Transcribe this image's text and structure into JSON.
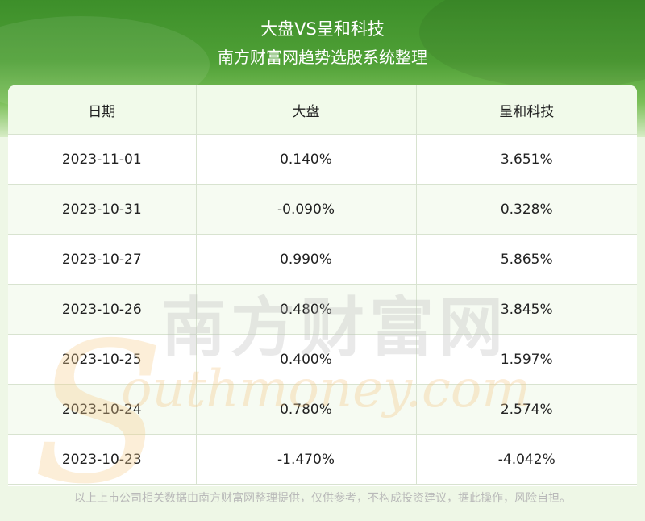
{
  "header": {
    "title": "大盘VS呈和科技",
    "subtitle": "南方财富网趋势选股系统整理"
  },
  "table": {
    "columns": [
      "日期",
      "大盘",
      "呈和科技"
    ],
    "rows": [
      [
        "2023-11-01",
        "0.140%",
        "3.651%"
      ],
      [
        "2023-10-31",
        "-0.090%",
        "0.328%"
      ],
      [
        "2023-10-27",
        "0.990%",
        "5.865%"
      ],
      [
        "2023-10-26",
        "0.480%",
        "3.845%"
      ],
      [
        "2023-10-25",
        "0.400%",
        "1.597%"
      ],
      [
        "2023-10-24",
        "0.780%",
        "2.574%"
      ],
      [
        "2023-10-23",
        "-1.470%",
        "-4.042%"
      ]
    ]
  },
  "watermark": {
    "cn": "南方财富网",
    "en": "outhmoney.com",
    "initial": "S"
  },
  "footer": {
    "disclaimer": "以上上市公司相关数据由南方财富网整理提供，仅供参考，不构成投资建议，据此操作，风险自担。"
  },
  "colors": {
    "brand_green": "#4fa036",
    "header_row_bg": "#f1faea",
    "footer_text": "#b9b9b9"
  }
}
